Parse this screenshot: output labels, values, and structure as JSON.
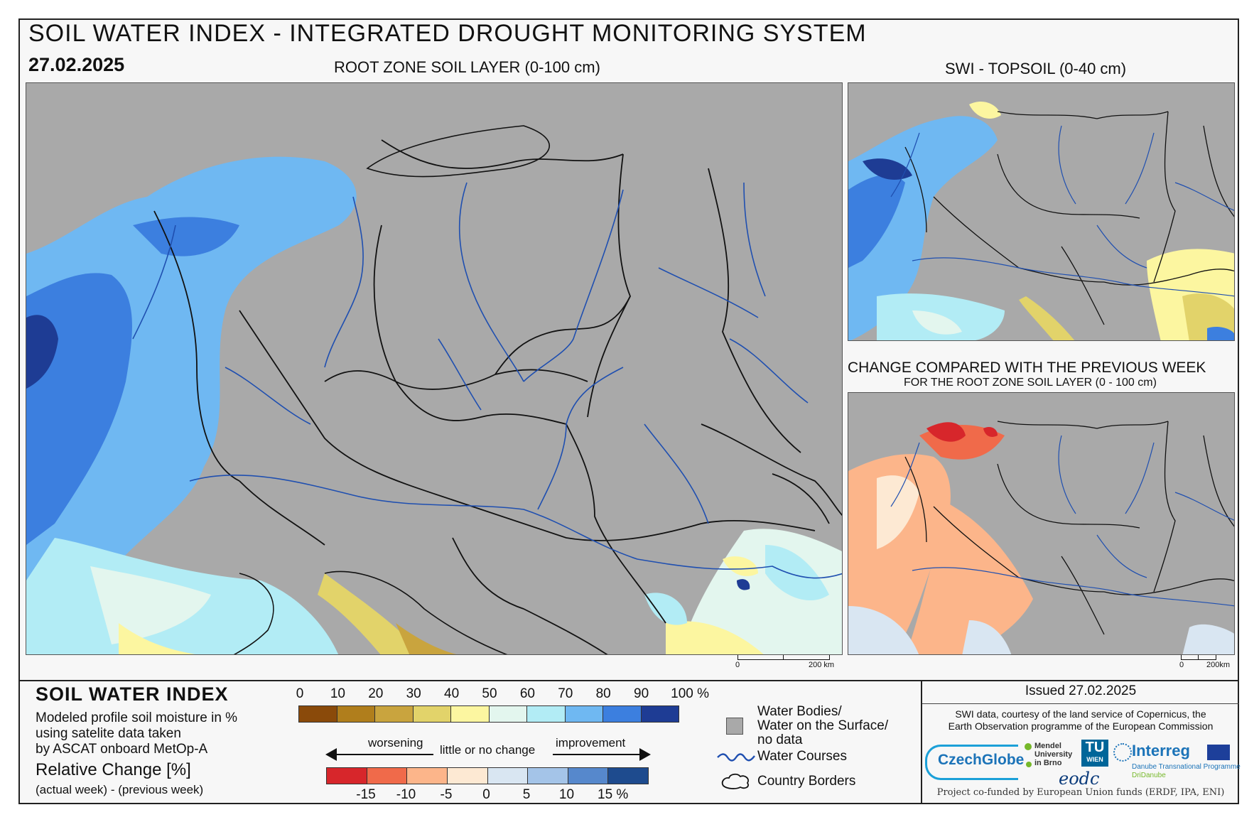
{
  "header": {
    "title": "SOIL WATER INDEX - INTEGRATED DROUGHT MONITORING SYSTEM",
    "date": "27.02.2025"
  },
  "panels": {
    "main_title": "ROOT ZONE SOIL LAYER (0-100 cm)",
    "topsoil_title": "SWI - TOPSOIL (0-40 cm)",
    "change_title": "CHANGE COMPARED WITH THE PREVIOUS WEEK",
    "change_subtitle": "FOR THE ROOT ZONE SOIL LAYER (0 - 100 cm)"
  },
  "scalebars": {
    "main": {
      "zero": "0",
      "end": "200 km"
    },
    "small": {
      "zero": "0",
      "end": "200km"
    }
  },
  "legend": {
    "title": "SOIL WATER INDEX",
    "desc_lines": [
      "Modeled profile soil moisture in %",
      "using satelite data taken",
      "by ASCAT onboard MetOp-A"
    ],
    "relative_title": "Relative Change [%]",
    "relative_sub": "(actual week) - (previous week)",
    "swi_ticks": [
      "0",
      "10",
      "20",
      "30",
      "40",
      "50",
      "60",
      "70",
      "80",
      "90",
      "100 %"
    ],
    "swi_colors": [
      "#8a4a0a",
      "#b07e1c",
      "#c9a43e",
      "#e2d36a",
      "#fcf6a0",
      "#e3f6ee",
      "#b2ecf5",
      "#6fb8f2",
      "#3c7fdf",
      "#1e3c94"
    ],
    "change_ticks": [
      "-15",
      "-10",
      "-5",
      "0",
      "5",
      "10",
      "15 %"
    ],
    "change_colors": [
      "#d7262b",
      "#f06a4a",
      "#fcb58a",
      "#fde9d3",
      "#d9e6f2",
      "#a4c4e8",
      "#5688cc",
      "#1e4b8e"
    ],
    "worsening": "worsening",
    "little": "little or no change",
    "improvement": "improvement",
    "symbols": {
      "water_bodies": [
        "Water Bodies/",
        "Water on the Surface/",
        "no data"
      ],
      "water_courses": "Water Courses",
      "country_borders": "Country Borders"
    }
  },
  "footer": {
    "issued": "Issued 27.02.2025",
    "credit_lines": [
      "SWI data, courtesy of the land service of Copernicus, the",
      "Earth Observation programme of the European Commission"
    ],
    "logos": {
      "czechglobe": "CzechGlobe",
      "mendel": [
        "Mendel",
        "University",
        "in Brno"
      ],
      "tuwien": [
        "TU",
        "WIEN"
      ],
      "eodc": "eodc",
      "interreg": "Interreg",
      "interreg_sub": [
        "Danube Transnational Programme",
        "DriDanube"
      ]
    },
    "cofunded": "Project co-funded by European Union funds (ERDF, IPA, ENI)"
  },
  "colors": {
    "map_background": "#a9a9a9",
    "border_line": "#111111",
    "river_line": "#1f4fb0"
  }
}
